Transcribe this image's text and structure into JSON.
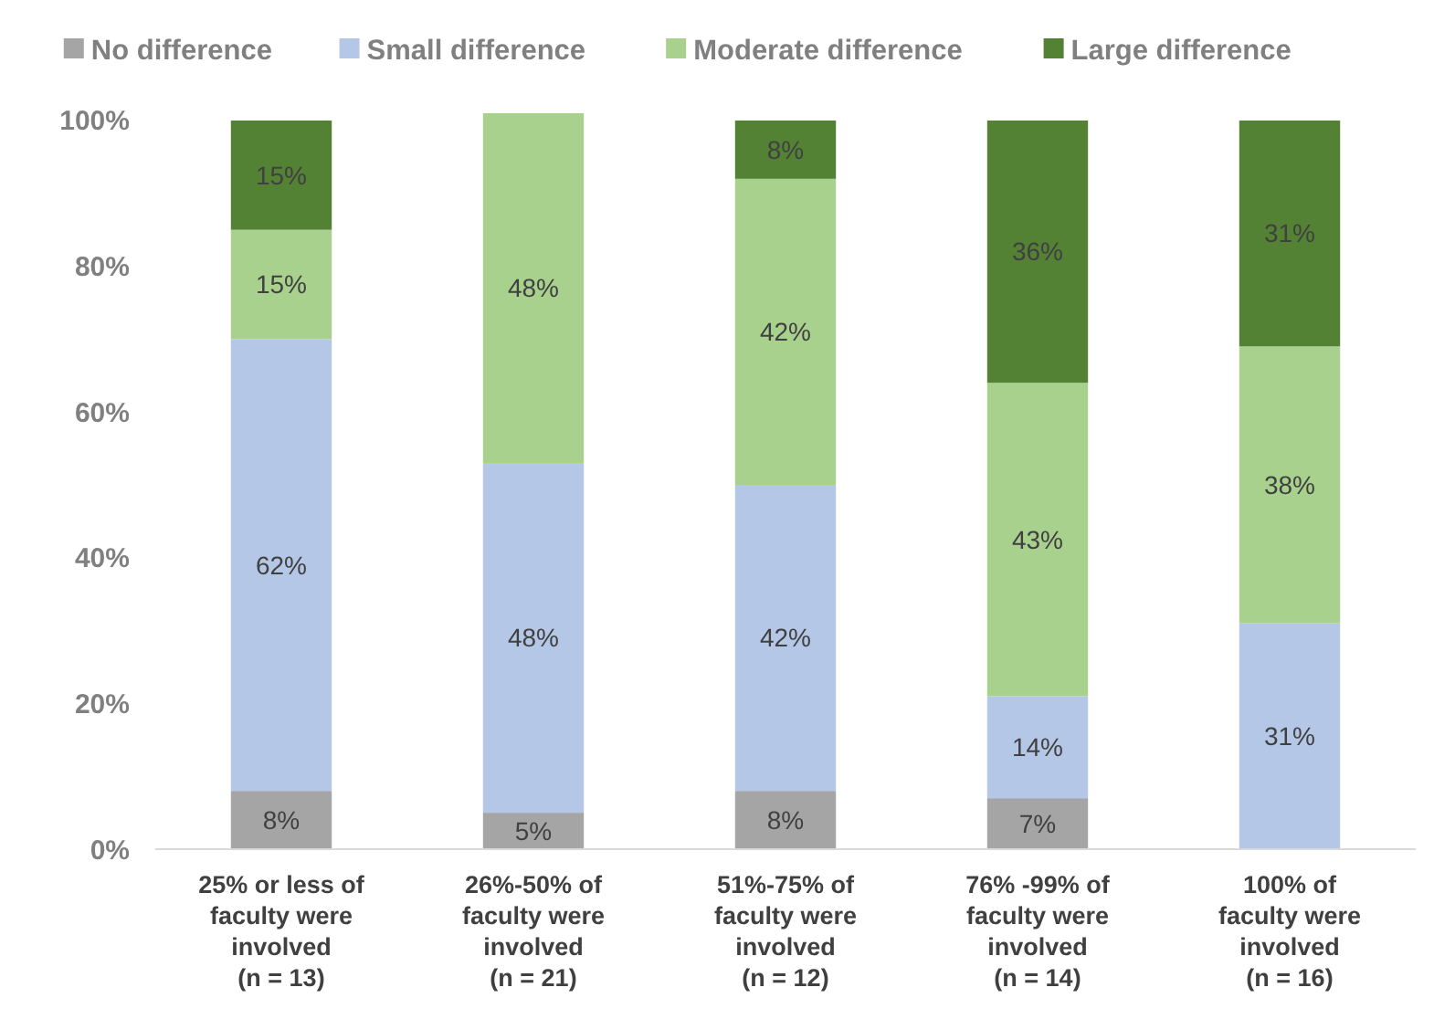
{
  "chart_data": {
    "type": "bar",
    "stacked": true,
    "legend": "top",
    "categories": [
      "25% or less of faculty were involved (n = 13)",
      "26%-50% of faculty were involved (n = 21)",
      "51%-75% of faculty were involved (n = 12)",
      "76% -99% of faculty were involved (n = 14)",
      "100% of faculty were involved (n = 16)"
    ],
    "series": [
      {
        "name": "No difference",
        "color": "#a5a5a5",
        "values": [
          8,
          5,
          8,
          7,
          0
        ],
        "value_labels": [
          "8%",
          "5%",
          "8%",
          "7%",
          null
        ]
      },
      {
        "name": "Small difference",
        "color": "#b4c7e7",
        "values": [
          62,
          48,
          42,
          14,
          31
        ],
        "value_labels": [
          "62%",
          "48%",
          "42%",
          "14%",
          "31%"
        ]
      },
      {
        "name": "Moderate difference",
        "color": "#a9d18e",
        "values": [
          15,
          48,
          42,
          43,
          38
        ],
        "value_labels": [
          "15%",
          "48%",
          "42%",
          "43%",
          "38%"
        ]
      },
      {
        "name": "Large difference",
        "color": "#548235",
        "values": [
          15,
          0,
          8,
          36,
          31
        ],
        "value_labels": [
          "15%",
          null,
          "8%",
          "36%",
          "31%"
        ]
      }
    ],
    "ylim": [
      0,
      101
    ],
    "yticks": [
      {
        "value": 0,
        "label": "0%"
      },
      {
        "value": 20,
        "label": "20%"
      },
      {
        "value": 40,
        "label": "40%"
      },
      {
        "value": 60,
        "label": "60%"
      },
      {
        "value": 80,
        "label": "80%"
      },
      {
        "value": 100,
        "label": "100%"
      }
    ]
  }
}
